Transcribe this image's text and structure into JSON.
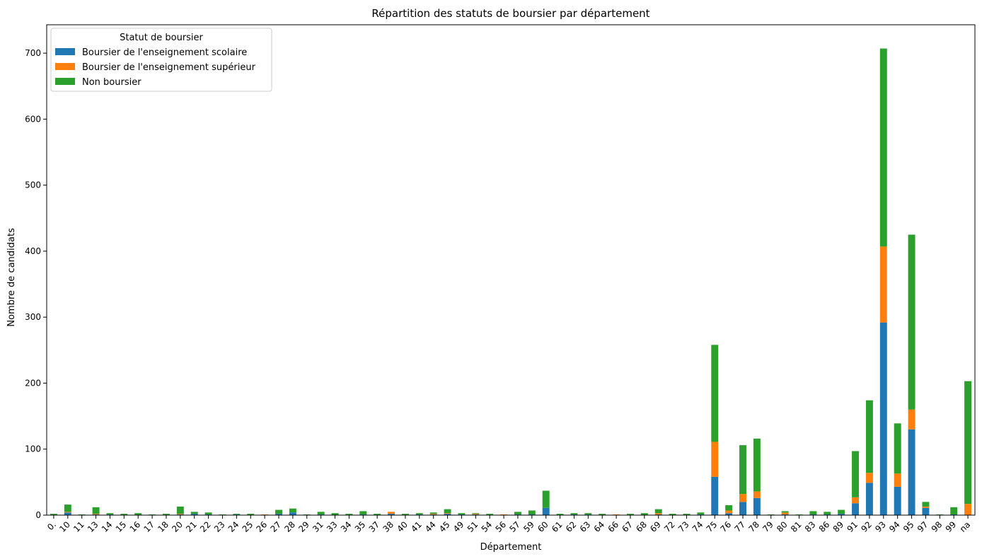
{
  "chart_data": {
    "type": "bar",
    "stacked": true,
    "title": "Répartition des statuts de boursier par département",
    "xlabel": "Département",
    "ylabel": "Nombre de candidats",
    "ylim": [
      0,
      743
    ],
    "yticks": [
      0,
      100,
      200,
      300,
      400,
      500,
      600,
      700
    ],
    "grid": false,
    "legend": {
      "title": "Statut de boursier",
      "placement": "top-left"
    },
    "categories": [
      "0.",
      "10",
      "11",
      "13",
      "14",
      "15",
      "16",
      "17",
      "18",
      "20",
      "21",
      "22",
      "23",
      "24",
      "25",
      "26",
      "27",
      "28",
      "29",
      "31",
      "33",
      "34",
      "35",
      "37",
      "38",
      "40",
      "41",
      "44",
      "45",
      "49",
      "51",
      "54",
      "56",
      "57",
      "59",
      "60",
      "61",
      "62",
      "63",
      "64",
      "66",
      "67",
      "68",
      "69",
      "72",
      "73",
      "74",
      "75",
      "76",
      "77",
      "78",
      "79",
      "80",
      "81",
      "83",
      "86",
      "89",
      "91",
      "92",
      "93",
      "94",
      "95",
      "97",
      "98",
      "99",
      "na"
    ],
    "series": [
      {
        "name": "Boursier de l'enseignement scolaire",
        "color": "#1f77b4",
        "values": [
          0,
          4,
          0,
          1,
          1,
          0,
          0,
          0,
          0,
          1,
          2,
          1,
          0,
          1,
          0,
          0,
          2,
          4,
          0,
          1,
          0,
          0,
          1,
          0,
          2,
          0,
          1,
          1,
          2,
          1,
          1,
          0,
          0,
          1,
          1,
          11,
          0,
          1,
          1,
          0,
          0,
          0,
          0,
          1,
          0,
          0,
          1,
          58,
          3,
          20,
          26,
          0,
          1,
          0,
          1,
          1,
          2,
          18,
          49,
          292,
          43,
          130,
          11,
          0,
          1,
          0
        ]
      },
      {
        "name": "Boursier de l'enseignement supérieur",
        "color": "#ff7f0e",
        "values": [
          0,
          1,
          0,
          1,
          0,
          0,
          0,
          0,
          0,
          1,
          0,
          0,
          0,
          0,
          0,
          1,
          0,
          0,
          0,
          0,
          0,
          0,
          0,
          0,
          3,
          0,
          0,
          1,
          1,
          0,
          1,
          0,
          1,
          0,
          0,
          0,
          0,
          0,
          0,
          0,
          1,
          0,
          0,
          2,
          0,
          0,
          0,
          53,
          4,
          12,
          10,
          0,
          3,
          0,
          0,
          0,
          0,
          9,
          15,
          115,
          20,
          30,
          2,
          0,
          0,
          17
        ]
      },
      {
        "name": "Non boursier",
        "color": "#2ca02c",
        "values": [
          2,
          11,
          1,
          10,
          2,
          2,
          3,
          1,
          2,
          11,
          3,
          3,
          1,
          1,
          2,
          0,
          6,
          6,
          1,
          4,
          3,
          2,
          5,
          2,
          0,
          2,
          2,
          2,
          6,
          2,
          1,
          2,
          0,
          4,
          6,
          26,
          2,
          2,
          2,
          2,
          0,
          2,
          3,
          6,
          2,
          2,
          3,
          147,
          8,
          74,
          80,
          1,
          2,
          1,
          5,
          4,
          6,
          70,
          110,
          300,
          76,
          265,
          7,
          1,
          11,
          186
        ]
      }
    ]
  }
}
